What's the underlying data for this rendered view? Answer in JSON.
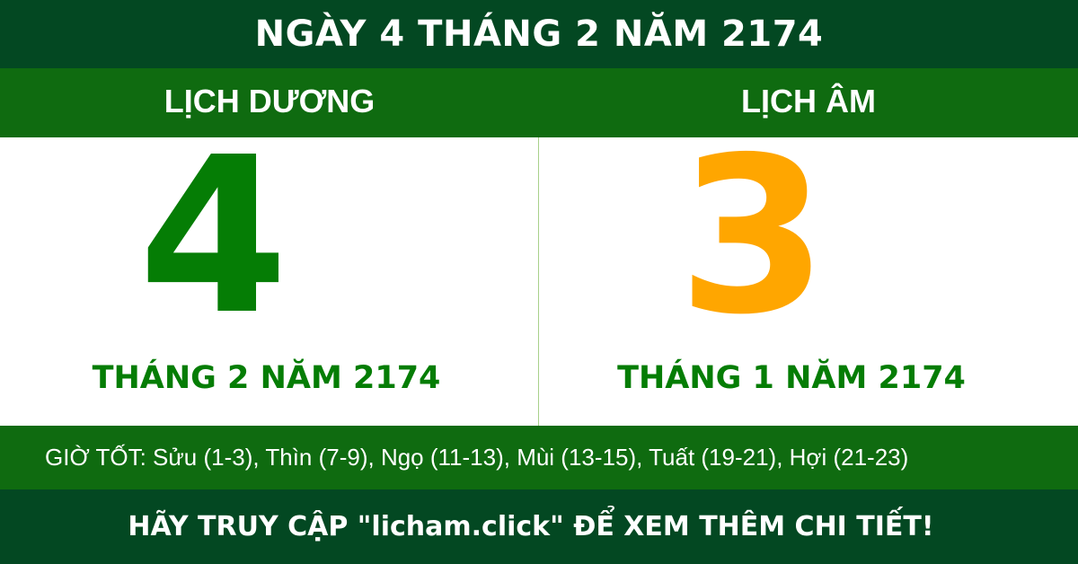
{
  "header": {
    "title": "NGÀY 4 THÁNG 2 NĂM 2174"
  },
  "solar": {
    "label": "LỊCH DƯƠNG",
    "day": "4",
    "month_year": "THÁNG 2 NĂM 2174"
  },
  "lunar": {
    "label": "LỊCH ÂM",
    "day": "3",
    "month_year": "THÁNG 1 NĂM 2174"
  },
  "good_hours": "GIỜ TỐT: Sửu (1-3), Thìn (7-9), Ngọ (11-13), Mùi (13-15), Tuất (19-21), Hợi (21-23)",
  "footer": {
    "cta": "HÃY TRUY CẬP \"licham.click\" ĐỂ XEM THÊM CHI TIẾT!"
  },
  "colors": {
    "dark_green": "#034822",
    "band_green": "#0f6b10",
    "solar_digit": "#057d05",
    "lunar_digit": "#ffa600"
  }
}
